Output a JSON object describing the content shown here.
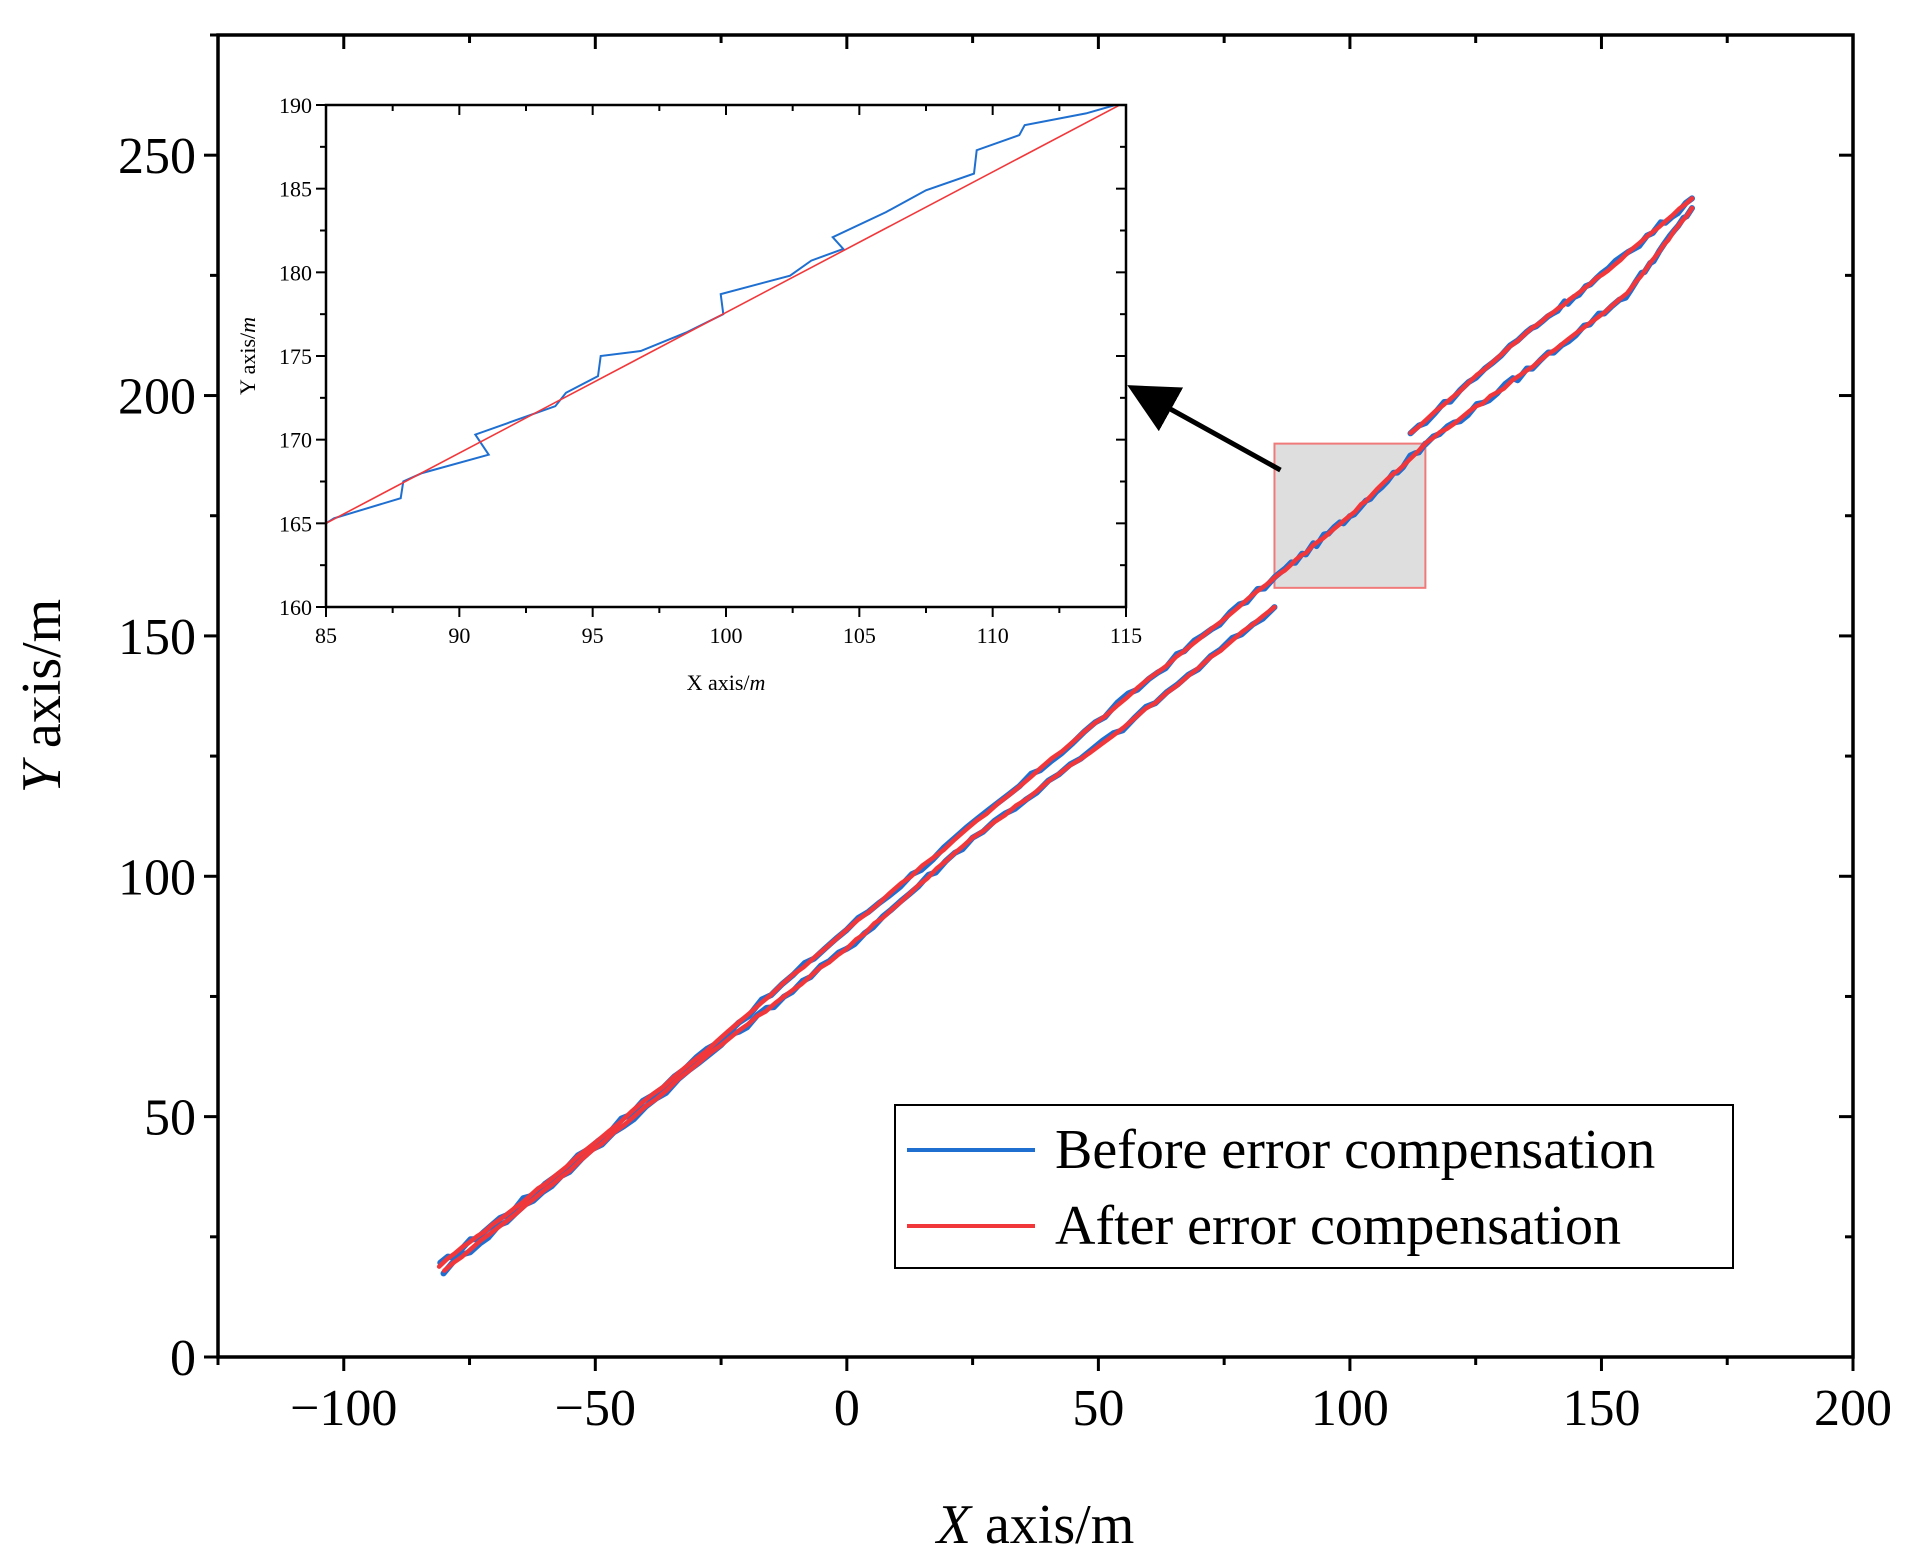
{
  "chart_data": [
    {
      "id": "main",
      "type": "line",
      "title": "",
      "xlabel": {
        "italic": "X",
        "rest": " axis/m"
      },
      "ylabel": {
        "italic": "Y",
        "rest": " axis/m"
      },
      "xlim": [
        -125,
        200
      ],
      "ylim": [
        0,
        275
      ],
      "xticks": [
        -100,
        -50,
        0,
        50,
        100,
        150,
        200
      ],
      "xtick_labels": [
        "−100",
        "−50",
        "0",
        "50",
        "100",
        "150",
        "200"
      ],
      "yticks": [
        0,
        50,
        100,
        150,
        200,
        250
      ],
      "ytick_labels": [
        "0",
        "50",
        "100",
        "150",
        "200",
        "250"
      ],
      "legend": {
        "position": "bottom-right",
        "entries": [
          {
            "label": "Before error compensation",
            "color": "#1f6fd1"
          },
          {
            "label": "After error compensation",
            "color": "#f2373a"
          }
        ]
      },
      "series": [
        {
          "name": "Before error compensation",
          "color": "#1f6fd1",
          "segments": [
            {
              "x": [
                -81,
                -60,
                -30,
                0,
                30,
                60,
                85,
                100,
                115
              ],
              "y": [
                19,
                36,
                62,
                89,
                115,
                141,
                162,
                175,
                190
              ]
            },
            {
              "x": [
                -80,
                -55,
                -25,
                0,
                25,
                55,
                85
              ],
              "y": [
                18,
                39,
                65,
                85,
                108,
                131,
                156
              ]
            },
            {
              "x": [
                115,
                135,
                155,
                168
              ],
              "y": [
                190,
                205,
                221,
                239
              ]
            },
            {
              "x": [
                112,
                135,
                150,
                168
              ],
              "y": [
                192,
                213,
                225,
                241
              ]
            }
          ]
        },
        {
          "name": "After error compensation",
          "color": "#f2373a",
          "segments": [
            {
              "x": [
                -81,
                -60,
                -30,
                0,
                30,
                60,
                85,
                100,
                115
              ],
              "y": [
                19,
                36,
                62,
                89,
                115,
                141,
                162,
                175,
                190
              ]
            },
            {
              "x": [
                -80,
                -55,
                -25,
                0,
                25,
                55,
                85
              ],
              "y": [
                18,
                39,
                65,
                85,
                108,
                131,
                156
              ]
            },
            {
              "x": [
                115,
                135,
                155,
                168
              ],
              "y": [
                190,
                205,
                221,
                239
              ]
            },
            {
              "x": [
                112,
                135,
                150,
                168
              ],
              "y": [
                192,
                213,
                225,
                241
              ]
            }
          ]
        }
      ],
      "annotations": {
        "zoom_box": {
          "x": [
            85,
            115
          ],
          "y": [
            160,
            190
          ]
        }
      }
    },
    {
      "id": "inset",
      "type": "line",
      "title": "",
      "xlabel": {
        "rest": "X axis/",
        "italic": "m"
      },
      "ylabel": {
        "rest": "Y axis/",
        "italic": "m"
      },
      "xlim": [
        85,
        115
      ],
      "ylim": [
        160,
        190
      ],
      "xticks": [
        85,
        90,
        95,
        100,
        105,
        110,
        115
      ],
      "xtick_labels": [
        "85",
        "90",
        "95",
        "100",
        "105",
        "110",
        "115"
      ],
      "yticks": [
        160,
        165,
        170,
        175,
        180,
        185,
        190
      ],
      "ytick_labels": [
        "160",
        "165",
        "170",
        "175",
        "180",
        "185",
        "190"
      ],
      "series": [
        {
          "name": "Before error compensation",
          "color": "#1f6fd1",
          "x": [
            85,
            85.3,
            87.8,
            87.9,
            88.6,
            91.1,
            90.6,
            93.6,
            94.0,
            95.2,
            95.3,
            96.8,
            98.5,
            99.9,
            99.8,
            102.4,
            103.2,
            104.4,
            104.0,
            106.0,
            107.5,
            109.3,
            109.4,
            111.0,
            111.2,
            113.5,
            114.6
          ],
          "y": [
            165,
            165.3,
            166.5,
            167.5,
            168,
            169.1,
            170.3,
            172.0,
            172.8,
            173.8,
            175.0,
            175.3,
            176.4,
            177.5,
            178.7,
            179.8,
            180.7,
            181.4,
            182.1,
            183.6,
            184.9,
            185.9,
            187.3,
            188.2,
            188.8,
            189.5,
            190
          ]
        },
        {
          "name": "After error compensation",
          "color": "#f2373a",
          "x": [
            85,
            115
          ],
          "y": [
            165,
            190.2
          ]
        }
      ]
    }
  ]
}
